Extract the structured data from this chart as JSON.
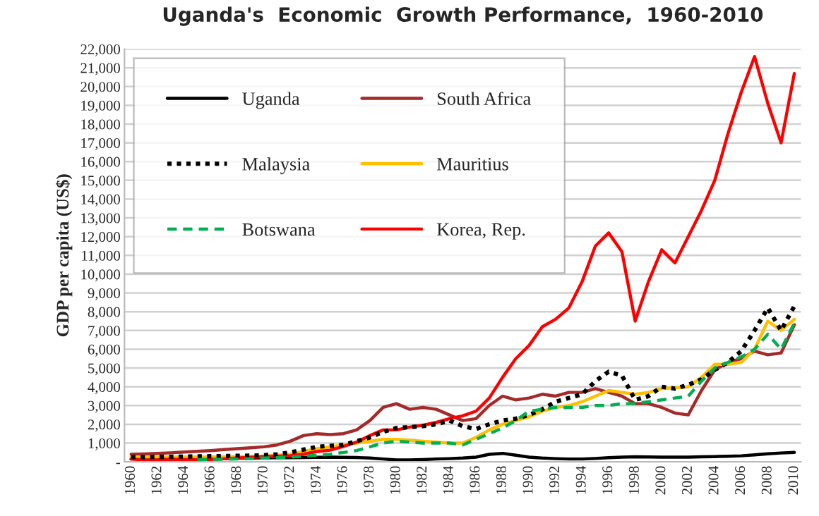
{
  "chart_data": {
    "type": "line",
    "title": "Uganda's  Economic  Growth Performance,  1960-2010",
    "ylabel": "GDP per capita (US$)",
    "categories": [
      "1960",
      null,
      "1962",
      null,
      "1964",
      null,
      "1966",
      null,
      "1968",
      null,
      "1970",
      null,
      "1972",
      null,
      "1974",
      null,
      "1976",
      null,
      "1978",
      null,
      "1980",
      null,
      "1982",
      null,
      "1984",
      null,
      "1986",
      null,
      "1988",
      null,
      "1990",
      null,
      "1992",
      null,
      "1994",
      null,
      "1996",
      null,
      "1998",
      null,
      "2000",
      null,
      "2002",
      null,
      "2004",
      null,
      "2006",
      null,
      "2008",
      null,
      "2010"
    ],
    "ylim": [
      0,
      22000
    ],
    "yticks": [
      {
        "value": 0,
        "label": "-"
      },
      {
        "value": 1000,
        "label": "1,000"
      },
      {
        "value": 2000,
        "label": "2,000"
      },
      {
        "value": 3000,
        "label": "3,000"
      },
      {
        "value": 4000,
        "label": "4,000"
      },
      {
        "value": 5000,
        "label": "5,000"
      },
      {
        "value": 6000,
        "label": "6,000"
      },
      {
        "value": 7000,
        "label": "7,000"
      },
      {
        "value": 8000,
        "label": "8,000"
      },
      {
        "value": 9000,
        "label": "9,000"
      },
      {
        "value": 10000,
        "label": "10,000"
      },
      {
        "value": 11000,
        "label": "11,000"
      },
      {
        "value": 12000,
        "label": "12,000"
      },
      {
        "value": 13000,
        "label": "13,000"
      },
      {
        "value": 14000,
        "label": "14,000"
      },
      {
        "value": 15000,
        "label": "15,000"
      },
      {
        "value": 16000,
        "label": "16,000"
      },
      {
        "value": 17000,
        "label": "17,000"
      },
      {
        "value": 18000,
        "label": "18,000"
      },
      {
        "value": 19000,
        "label": "19,000"
      },
      {
        "value": 20000,
        "label": "20,000"
      },
      {
        "value": 21000,
        "label": "21,000"
      },
      {
        "value": 22000,
        "label": "22,000"
      }
    ],
    "grid": "y",
    "legend": "top left",
    "marker": "none",
    "series": [
      {
        "name": "Uganda",
        "color": "#000000",
        "line_style": "solid",
        "values": [
          150,
          150,
          150,
          160,
          170,
          170,
          180,
          180,
          190,
          200,
          210,
          220,
          220,
          230,
          240,
          250,
          240,
          230,
          200,
          150,
          100,
          100,
          120,
          150,
          170,
          200,
          250,
          400,
          450,
          350,
          250,
          200,
          170,
          150,
          150,
          180,
          220,
          250,
          270,
          260,
          250,
          250,
          250,
          270,
          280,
          300,
          320,
          370,
          430,
          470,
          500
        ]
      },
      {
        "name": "South Africa",
        "color": "#a52a2a",
        "line_style": "solid",
        "values": [
          400,
          420,
          450,
          480,
          520,
          560,
          600,
          650,
          700,
          750,
          800,
          900,
          1100,
          1400,
          1500,
          1450,
          1500,
          1700,
          2200,
          2900,
          3100,
          2800,
          2900,
          2800,
          2500,
          2200,
          2300,
          3000,
          3500,
          3300,
          3400,
          3600,
          3500,
          3700,
          3700,
          3900,
          3700,
          3500,
          3100,
          3100,
          2900,
          2600,
          2500,
          3800,
          4900,
          5300,
          5500,
          5900,
          5700,
          5800,
          7300
        ]
      },
      {
        "name": "Malaysia",
        "color": "#000000",
        "line_style": "dotted",
        "values": [
          250,
          250,
          260,
          270,
          280,
          290,
          300,
          310,
          320,
          330,
          350,
          400,
          500,
          650,
          800,
          850,
          900,
          1100,
          1300,
          1600,
          1800,
          1850,
          1900,
          2000,
          2200,
          1900,
          1750,
          2000,
          2200,
          2300,
          2500,
          2800,
          3200,
          3400,
          3600,
          4300,
          4800,
          4600,
          3300,
          3500,
          4000,
          3900,
          4100,
          4400,
          4900,
          5300,
          5900,
          7000,
          8200,
          7000,
          8300
        ]
      },
      {
        "name": "Mauritius",
        "color": "#ffc000",
        "line_style": "solid",
        "values": [
          250,
          250,
          250,
          250,
          260,
          260,
          260,
          270,
          270,
          280,
          300,
          350,
          400,
          550,
          700,
          800,
          900,
          1000,
          1100,
          1200,
          1200,
          1150,
          1100,
          1050,
          1000,
          1000,
          1300,
          1700,
          2000,
          2200,
          2400,
          2700,
          2900,
          3000,
          3200,
          3500,
          3800,
          3700,
          3600,
          3700,
          3900,
          3950,
          4000,
          4500,
          5200,
          5200,
          5300,
          6000,
          7500,
          7000,
          7600
        ]
      },
      {
        "name": "Botswana",
        "color": "#00b050",
        "line_style": "dashed",
        "values": [
          null,
          null,
          null,
          null,
          null,
          120,
          130,
          140,
          150,
          170,
          200,
          220,
          250,
          300,
          350,
          400,
          500,
          600,
          800,
          1000,
          1100,
          1050,
          1000,
          1000,
          1000,
          900,
          1200,
          1500,
          1800,
          2200,
          2700,
          2800,
          2900,
          2900,
          2900,
          3000,
          3000,
          3100,
          3100,
          3200,
          3300,
          3400,
          3500,
          4300,
          5000,
          5300,
          5600,
          6000,
          6800,
          6000,
          7400
        ]
      },
      {
        "name": "Korea, Rep.",
        "color": "#ff0000",
        "line_style": "solid",
        "values": [
          150,
          100,
          110,
          140,
          120,
          110,
          130,
          160,
          200,
          240,
          280,
          300,
          330,
          400,
          550,
          620,
          820,
          1050,
          1400,
          1700,
          1700,
          1850,
          1950,
          2100,
          2300,
          2450,
          2700,
          3400,
          4500,
          5500,
          6200,
          7200,
          7600,
          8200,
          9600,
          11500,
          12200,
          11200,
          7500,
          9600,
          11300,
          10600,
          12000,
          13400,
          15000,
          17500,
          19700,
          21600,
          19100,
          17000,
          20700
        ]
      }
    ]
  }
}
